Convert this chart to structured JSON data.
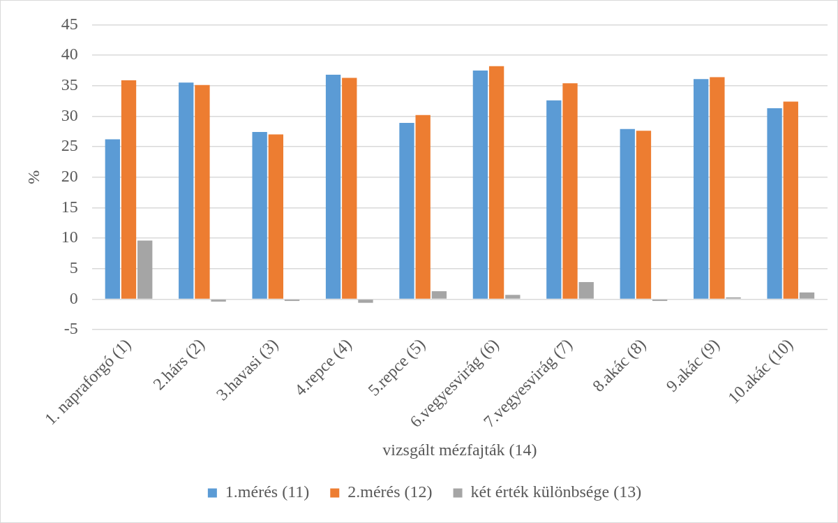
{
  "chart_data": {
    "type": "bar",
    "xlabel": "vizsgált mézfajták (14)",
    "ylabel": "%",
    "categories": [
      "1. napraforgó (1)",
      "2.hárs (2)",
      "3.havasi (3)",
      "4.repce (4)",
      "5.repce (5)",
      "6.vegyesvirág (6)",
      "7.vegyesvirág (7)",
      "8.akác (8)",
      "9.akác (9)",
      "10.akác (10)"
    ],
    "series": [
      {
        "name": "1.mérés (11)",
        "color": "#5b9bd5",
        "values": [
          26.2,
          35.5,
          27.4,
          36.8,
          28.9,
          37.5,
          32.6,
          27.9,
          36.1,
          31.3
        ]
      },
      {
        "name": "2.mérés (12)",
        "color": "#ed7d31",
        "values": [
          35.9,
          35.1,
          27.0,
          36.3,
          30.2,
          38.2,
          35.4,
          27.6,
          36.4,
          32.4
        ]
      },
      {
        "name": "két érték különbsége (13)",
        "color": "#a5a5a5",
        "values": [
          9.6,
          -0.4,
          -0.3,
          -0.6,
          1.3,
          0.7,
          2.8,
          -0.3,
          0.3,
          1.1
        ]
      }
    ],
    "ylim": [
      -5,
      45
    ],
    "yticks": [
      -5,
      0,
      5,
      10,
      15,
      20,
      25,
      30,
      35,
      40,
      45
    ],
    "grid": "y",
    "legend": "bottom"
  }
}
